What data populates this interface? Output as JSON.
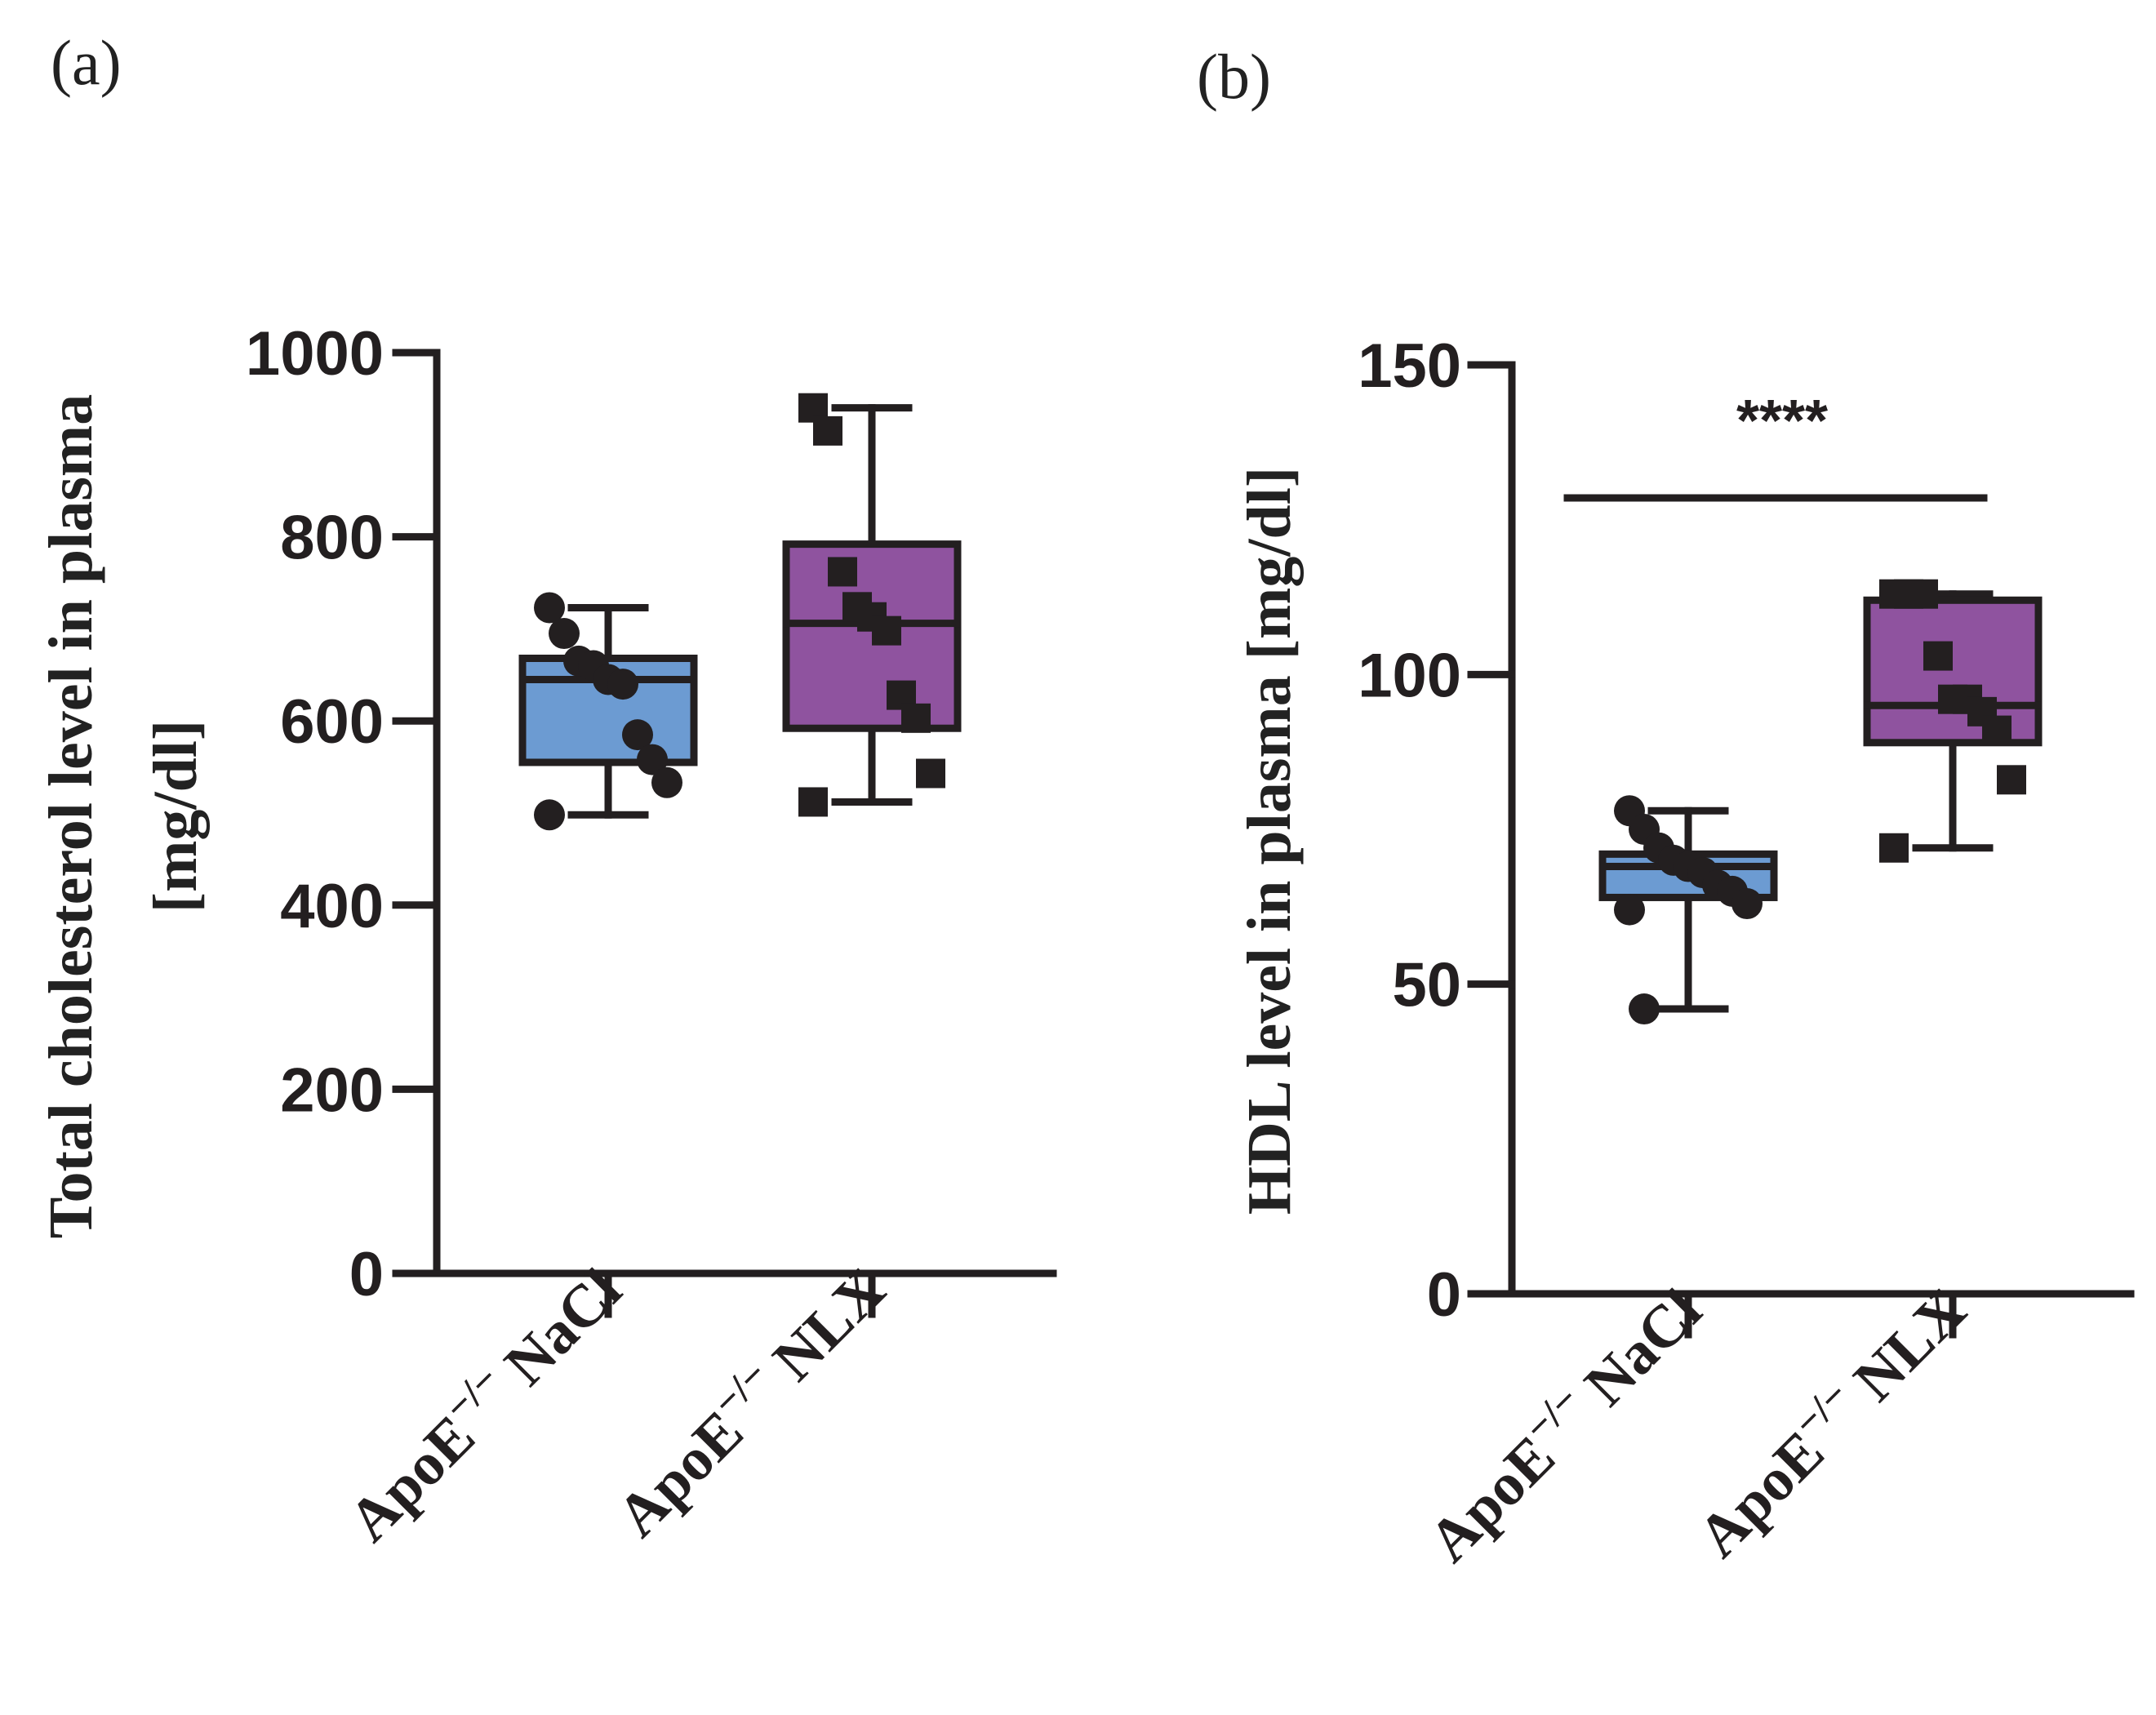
{
  "chart_data": [
    {
      "type": "box",
      "panel": "(a)",
      "ylabel_line1": "Total cholesterol level in plasma",
      "ylabel_line2": "[mg/dl]",
      "ylim": [
        0,
        1000
      ],
      "yticks": [
        "0",
        "200",
        "400",
        "600",
        "800",
        "1000"
      ],
      "groups": [
        {
          "name": "ApoE⁻/⁻ NaCl",
          "base": "ApoE",
          "sup": "−/−",
          "suffix": " NaCl",
          "color": "#6c9bd2",
          "marker": "circle",
          "min": 498,
          "q1": 555,
          "median": 645,
          "q3": 668,
          "max": 723,
          "points": [
            723,
            695,
            665,
            660,
            645,
            640,
            585,
            558,
            533,
            498
          ]
        },
        {
          "name": "ApoE⁻/⁻ NLX",
          "base": "ApoE",
          "sup": "−/−",
          "suffix": " NLX",
          "color": "#8f539f",
          "marker": "square",
          "min": 512,
          "q1": 592,
          "median": 706,
          "q3": 792,
          "max": 940,
          "points": [
            940,
            915,
            762,
            724,
            713,
            698,
            628,
            603,
            543,
            512
          ]
        }
      ]
    },
    {
      "type": "box",
      "panel": "(b)",
      "ylabel_line1": "HDL level in plasma [mg/dl]",
      "ylim": [
        0,
        150
      ],
      "yticks": [
        "0",
        "50",
        "100",
        "150"
      ],
      "significance": "****",
      "groups": [
        {
          "name": "ApoE⁻/⁻ NaCl",
          "base": "ApoE",
          "sup": "−/−",
          "suffix": " NaCl",
          "color": "#6c9bd2",
          "marker": "circle",
          "min": 46,
          "q1": 64,
          "median": 69,
          "q3": 71,
          "max": 78,
          "points": [
            78,
            75,
            72,
            70,
            69,
            68,
            66,
            65,
            63,
            62,
            46
          ]
        },
        {
          "name": "ApoE⁻/⁻ NLX",
          "base": "ApoE",
          "sup": "−/−",
          "suffix": " NLX",
          "color": "#8f539f",
          "marker": "square",
          "min": 72,
          "q1": 89,
          "median": 95,
          "q3": 112,
          "max": 113,
          "points": [
            113,
            113,
            113,
            103,
            96,
            96,
            94,
            91,
            83,
            72
          ]
        }
      ]
    }
  ]
}
